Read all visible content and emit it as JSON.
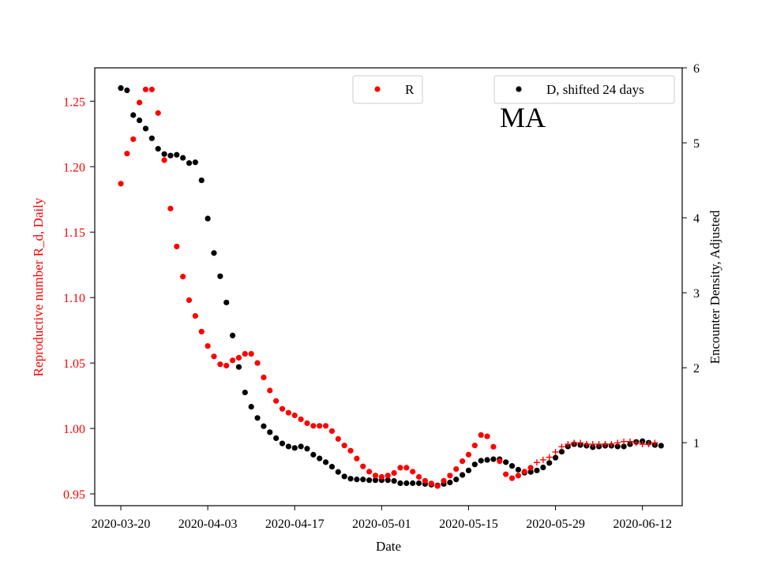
{
  "chart_data": {
    "type": "scatter",
    "title": "MA",
    "xlabel": "Date",
    "ylabel_left": "Reproductive number R_d, Daily",
    "ylabel_right": "Encounter Density, Adjusted",
    "x_tick_labels": [
      "2020-03-20",
      "2020-04-03",
      "2020-04-17",
      "2020-05-01",
      "2020-05-15",
      "2020-05-29",
      "2020-06-12"
    ],
    "x_tick_days": [
      0,
      14,
      28,
      42,
      56,
      70,
      84
    ],
    "xlim": [
      -4.2,
      90.4
    ],
    "ylim_left": [
      0.941,
      1.2755
    ],
    "y_ticks_left": [
      0.95,
      1.0,
      1.05,
      1.1,
      1.15,
      1.2,
      1.25
    ],
    "y_tick_labels_left": [
      "0.95",
      "1.00",
      "1.05",
      "1.10",
      "1.15",
      "1.20",
      "1.25"
    ],
    "ylim_right": [
      0.16,
      6.0
    ],
    "y_ticks_right": [
      1,
      2,
      3,
      4,
      5,
      6
    ],
    "y_tick_labels_right": [
      "1",
      "2",
      "3",
      "4",
      "5",
      "6"
    ],
    "colors": {
      "R": "#ff0000",
      "D": "#000000",
      "axis": "#000000"
    },
    "series": [
      {
        "name": "R",
        "axis": "left",
        "color": "#ff0000",
        "points": [
          [
            0,
            1.187
          ],
          [
            1,
            1.21
          ],
          [
            2,
            1.221
          ],
          [
            3,
            1.249
          ],
          [
            4,
            1.259
          ],
          [
            5,
            1.259
          ],
          [
            6,
            1.241
          ],
          [
            7,
            1.205
          ],
          [
            8,
            1.168
          ],
          [
            9,
            1.139
          ],
          [
            10,
            1.116
          ],
          [
            11,
            1.098
          ],
          [
            12,
            1.086
          ],
          [
            13,
            1.074
          ],
          [
            14,
            1.063
          ],
          [
            15,
            1.055
          ],
          [
            16,
            1.049
          ],
          [
            17,
            1.048
          ],
          [
            18,
            1.052
          ],
          [
            19,
            1.054
          ],
          [
            20,
            1.057
          ],
          [
            21,
            1.057
          ],
          [
            22,
            1.05
          ],
          [
            23,
            1.039
          ],
          [
            24,
            1.029
          ],
          [
            25,
            1.021
          ],
          [
            26,
            1.015
          ],
          [
            27,
            1.012
          ],
          [
            28,
            1.01
          ],
          [
            29,
            1.007
          ],
          [
            30,
            1.004
          ],
          [
            31,
            1.002
          ],
          [
            32,
            1.002
          ],
          [
            33,
            1.002
          ],
          [
            34,
            0.998
          ],
          [
            35,
            0.992
          ],
          [
            36,
            0.987
          ],
          [
            37,
            0.983
          ],
          [
            38,
            0.977
          ],
          [
            39,
            0.971
          ],
          [
            40,
            0.967
          ],
          [
            41,
            0.964
          ],
          [
            42,
            0.963
          ],
          [
            43,
            0.964
          ],
          [
            44,
            0.966
          ],
          [
            45,
            0.97
          ],
          [
            46,
            0.97
          ],
          [
            47,
            0.967
          ],
          [
            48,
            0.963
          ],
          [
            49,
            0.96
          ],
          [
            50,
            0.958
          ],
          [
            51,
            0.956
          ],
          [
            52,
            0.96
          ],
          [
            53,
            0.964
          ],
          [
            54,
            0.969
          ],
          [
            55,
            0.975
          ],
          [
            56,
            0.98
          ],
          [
            57,
            0.987
          ],
          [
            58,
            0.995
          ],
          [
            59,
            0.994
          ],
          [
            60,
            0.986
          ],
          [
            61,
            0.975
          ],
          [
            62,
            0.965
          ],
          [
            63,
            0.962
          ],
          [
            64,
            0.964
          ],
          [
            65,
            0.967
          ],
          [
            66,
            0.97
          ]
        ],
        "cross_points": [
          [
            67,
            0.974
          ],
          [
            68,
            0.976
          ],
          [
            69,
            0.978
          ],
          [
            70,
            0.982
          ],
          [
            71,
            0.986
          ],
          [
            72,
            0.988
          ],
          [
            73,
            0.989
          ],
          [
            74,
            0.989
          ],
          [
            75,
            0.988
          ],
          [
            76,
            0.988
          ],
          [
            77,
            0.988
          ],
          [
            78,
            0.988
          ],
          [
            79,
            0.988
          ],
          [
            80,
            0.989
          ],
          [
            81,
            0.99
          ],
          [
            82,
            0.99
          ],
          [
            83,
            0.989
          ],
          [
            84,
            0.988
          ],
          [
            85,
            0.988
          ],
          [
            86,
            0.989
          ]
        ]
      },
      {
        "name": "D, shifted 24 days",
        "axis": "right",
        "color": "#000000",
        "points": [
          [
            0,
            5.73
          ],
          [
            1,
            5.7
          ],
          [
            2,
            5.37
          ],
          [
            3,
            5.3
          ],
          [
            4,
            5.19
          ],
          [
            5,
            5.06
          ],
          [
            6,
            4.92
          ],
          [
            7,
            4.85
          ],
          [
            8,
            4.83
          ],
          [
            9,
            4.84
          ],
          [
            10,
            4.8
          ],
          [
            11,
            4.73
          ],
          [
            12,
            4.74
          ],
          [
            13,
            4.5
          ],
          [
            14,
            3.99
          ],
          [
            15,
            3.53
          ],
          [
            16,
            3.22
          ],
          [
            17,
            2.87
          ],
          [
            18,
            2.43
          ],
          [
            19,
            2.01
          ],
          [
            20,
            1.67
          ],
          [
            21,
            1.48
          ],
          [
            22,
            1.33
          ],
          [
            23,
            1.22
          ],
          [
            24,
            1.14
          ],
          [
            25,
            1.06
          ],
          [
            26,
            0.99
          ],
          [
            27,
            0.95
          ],
          [
            28,
            0.93
          ],
          [
            29,
            0.95
          ],
          [
            30,
            0.92
          ],
          [
            31,
            0.84
          ],
          [
            32,
            0.79
          ],
          [
            33,
            0.74
          ],
          [
            34,
            0.68
          ],
          [
            35,
            0.61
          ],
          [
            36,
            0.55
          ],
          [
            37,
            0.52
          ],
          [
            38,
            0.51
          ],
          [
            39,
            0.51
          ],
          [
            40,
            0.5
          ],
          [
            41,
            0.5
          ],
          [
            42,
            0.5
          ],
          [
            43,
            0.5
          ],
          [
            44,
            0.49
          ],
          [
            45,
            0.46
          ],
          [
            46,
            0.46
          ],
          [
            47,
            0.46
          ],
          [
            48,
            0.46
          ],
          [
            49,
            0.45
          ],
          [
            50,
            0.44
          ],
          [
            51,
            0.43
          ],
          [
            52,
            0.45
          ],
          [
            53,
            0.47
          ],
          [
            54,
            0.51
          ],
          [
            55,
            0.57
          ],
          [
            56,
            0.63
          ],
          [
            57,
            0.71
          ],
          [
            58,
            0.76
          ],
          [
            59,
            0.77
          ],
          [
            60,
            0.78
          ],
          [
            61,
            0.78
          ],
          [
            62,
            0.74
          ],
          [
            63,
            0.69
          ],
          [
            64,
            0.64
          ],
          [
            65,
            0.6
          ],
          [
            66,
            0.61
          ],
          [
            67,
            0.63
          ],
          [
            68,
            0.67
          ],
          [
            69,
            0.73
          ],
          [
            70,
            0.8
          ],
          [
            71,
            0.88
          ],
          [
            72,
            0.95
          ],
          [
            73,
            0.98
          ],
          [
            74,
            0.97
          ],
          [
            75,
            0.96
          ],
          [
            76,
            0.94
          ],
          [
            77,
            0.95
          ],
          [
            78,
            0.96
          ],
          [
            79,
            0.96
          ],
          [
            80,
            0.95
          ],
          [
            81,
            0.95
          ],
          [
            82,
            0.98
          ],
          [
            83,
            1.01
          ],
          [
            84,
            1.02
          ],
          [
            85,
            1.0
          ],
          [
            86,
            0.97
          ],
          [
            87,
            0.96
          ]
        ]
      }
    ],
    "legend": [
      {
        "label": "R",
        "series": "R",
        "placement": "top-center"
      },
      {
        "label": "D, shifted 24 days",
        "series": "D",
        "placement": "top-right"
      }
    ]
  }
}
